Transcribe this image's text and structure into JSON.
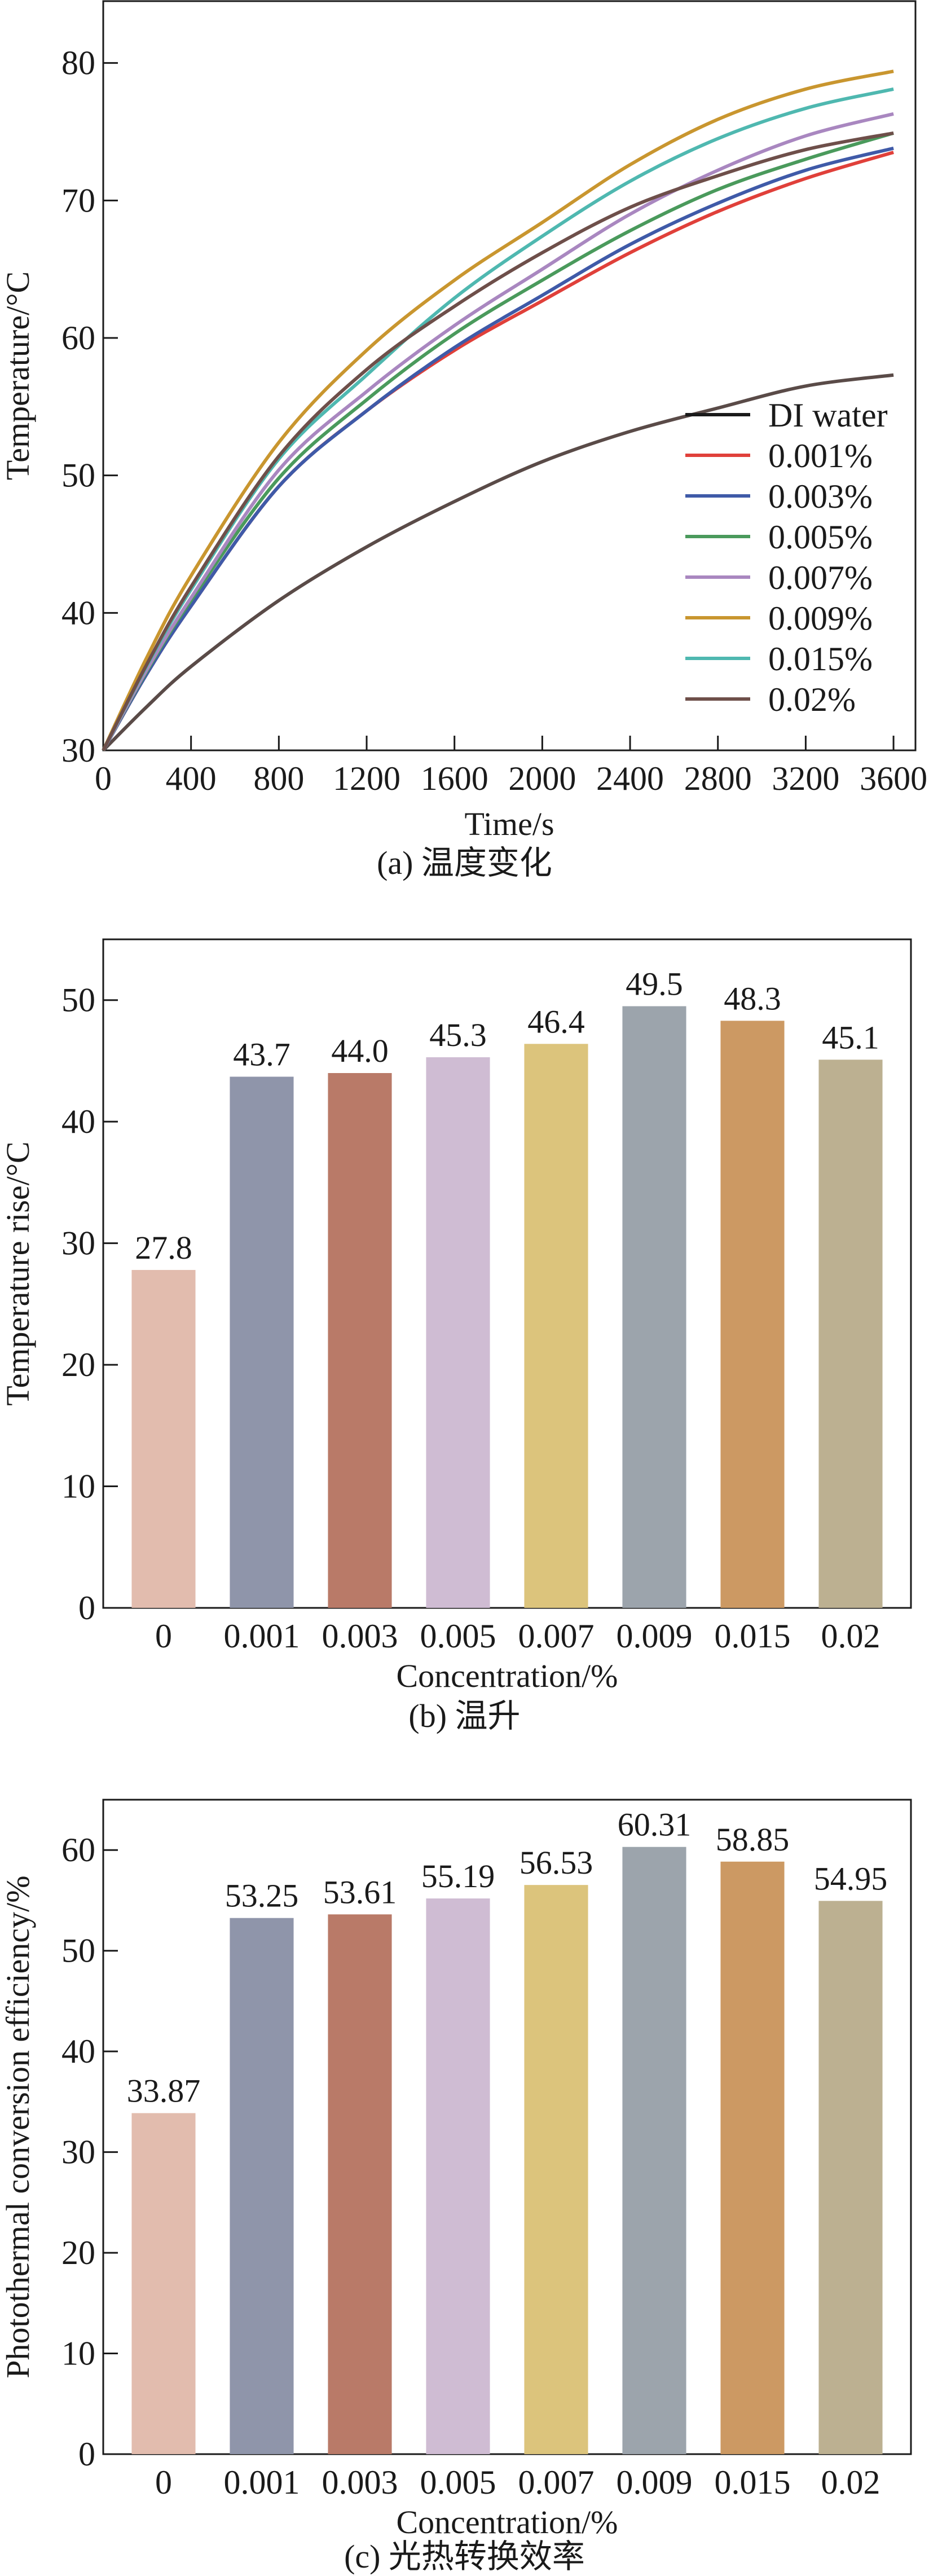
{
  "chart_data": [
    {
      "type": "line",
      "caption": "(a) 温度变化",
      "xlabel": "Time/s",
      "ylabel": "Temperature/°C",
      "xlim": [
        0,
        3700
      ],
      "ylim": [
        30,
        84.5
      ],
      "xticks": [
        0,
        400,
        800,
        1200,
        1600,
        2000,
        2400,
        2800,
        3200,
        3600
      ],
      "yticks": [
        30,
        40,
        50,
        60,
        70,
        80
      ],
      "grid": false,
      "legend_position": "bottom-right",
      "x": [
        0,
        200,
        400,
        800,
        1200,
        1600,
        2000,
        2400,
        2800,
        3200,
        3600
      ],
      "series": [
        {
          "name": "DI water",
          "color": "#5a4b48",
          "legend_color": "#1a1a1a",
          "values": [
            30,
            33.2,
            36.1,
            40.9,
            44.8,
            48.1,
            51.0,
            53.2,
            54.9,
            56.5,
            57.3
          ]
        },
        {
          "name": "0.001%",
          "color": "#e0403a",
          "values": [
            30,
            35.6,
            40.5,
            49.2,
            54.7,
            59.1,
            62.7,
            66.2,
            69.2,
            71.6,
            73.5
          ]
        },
        {
          "name": "0.003%",
          "color": "#3f5aa8",
          "values": [
            30,
            35.6,
            40.5,
            49.2,
            54.7,
            59.3,
            63.1,
            66.8,
            69.8,
            72.2,
            73.8
          ]
        },
        {
          "name": "0.005%",
          "color": "#4a9a5c",
          "values": [
            30,
            35.8,
            40.9,
            49.8,
            55.5,
            60.3,
            64.2,
            67.8,
            70.8,
            73.0,
            74.9
          ]
        },
        {
          "name": "0.007%",
          "color": "#a987c0",
          "values": [
            30,
            35.9,
            41.1,
            50.4,
            56.1,
            60.9,
            65.0,
            69.0,
            72.2,
            74.7,
            76.3
          ]
        },
        {
          "name": "0.009%",
          "color": "#c9962f",
          "values": [
            30,
            36.8,
            42.7,
            52.4,
            59.1,
            64.2,
            68.4,
            72.6,
            75.9,
            78.1,
            79.4
          ]
        },
        {
          "name": "0.015%",
          "color": "#4fb8b0",
          "values": [
            30,
            36.2,
            41.7,
            51.2,
            57.3,
            62.9,
            67.4,
            71.4,
            74.5,
            76.7,
            78.1
          ]
        },
        {
          "name": "0.02%",
          "color": "#6e4f4a",
          "values": [
            30,
            36.3,
            41.9,
            51.4,
            57.7,
            62.3,
            66.2,
            69.5,
            71.8,
            73.7,
            74.9
          ]
        }
      ]
    },
    {
      "type": "bar",
      "caption": "(b) 温升",
      "xlabel": "Concentration/%",
      "ylabel": "Temperature rise/°C",
      "ylim": [
        0,
        55
      ],
      "yticks": [
        0,
        10,
        20,
        30,
        40,
        50
      ],
      "grid": false,
      "categories": [
        "0",
        "0.001",
        "0.003",
        "0.005",
        "0.007",
        "0.009",
        "0.015",
        "0.02"
      ],
      "values": [
        27.8,
        43.7,
        44.0,
        45.3,
        46.4,
        49.5,
        48.3,
        45.1
      ],
      "labels": [
        "27.8",
        "43.7",
        "44.0",
        "45.3",
        "46.4",
        "49.5",
        "48.3",
        "45.1"
      ],
      "colors": [
        "#e2bcae",
        "#8f95aa",
        "#b97a68",
        "#cfbcd3",
        "#dcc47c",
        "#9ca4ac",
        "#cc9963",
        "#bcb091"
      ]
    },
    {
      "type": "bar",
      "caption": "(c) 光热转换效率",
      "xlabel": "Concentration/%",
      "ylabel": "Photothermal conversion efficiency/%",
      "ylim": [
        0,
        65
      ],
      "yticks": [
        0,
        10,
        20,
        30,
        40,
        50,
        60
      ],
      "grid": false,
      "categories": [
        "0",
        "0.001",
        "0.003",
        "0.005",
        "0.007",
        "0.009",
        "0.015",
        "0.02"
      ],
      "values": [
        33.87,
        53.25,
        53.61,
        55.19,
        56.53,
        60.31,
        58.85,
        54.95
      ],
      "labels": [
        "33.87",
        "53.25",
        "53.61",
        "55.19",
        "56.53",
        "60.31",
        "58.85",
        "54.95"
      ],
      "colors": [
        "#e2bcae",
        "#8f95aa",
        "#b97a68",
        "#cfbcd3",
        "#dcc47c",
        "#9ca4ac",
        "#cc9963",
        "#bcb091"
      ]
    }
  ]
}
